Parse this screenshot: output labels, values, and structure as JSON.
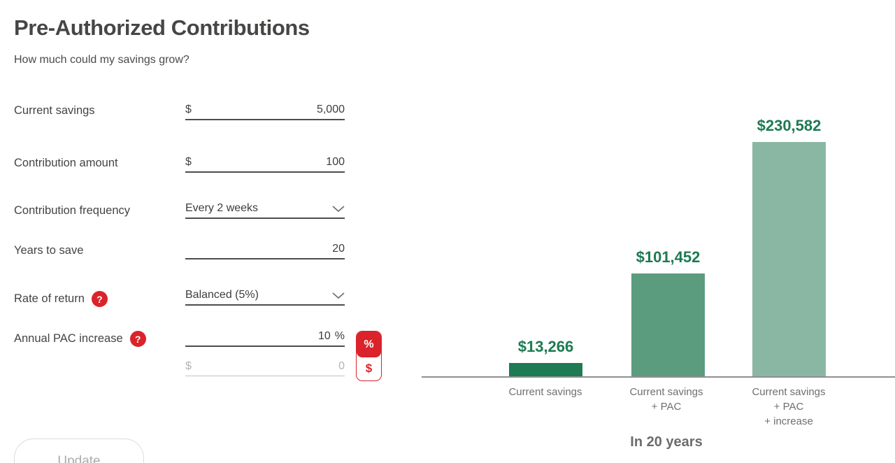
{
  "header": {
    "title": "Pre-Authorized Contributions",
    "subtitle": "How much could my savings grow?"
  },
  "form": {
    "current_savings": {
      "label": "Current savings",
      "prefix": "$",
      "value": "5,000"
    },
    "contribution_amount": {
      "label": "Contribution amount",
      "prefix": "$",
      "value": "100"
    },
    "contribution_frequency": {
      "label": "Contribution frequency",
      "value": "Every 2 weeks"
    },
    "years_to_save": {
      "label": "Years to save",
      "value": "20"
    },
    "rate_of_return": {
      "label": "Rate of return",
      "help_icon": "?",
      "value": "Balanced (5%)"
    },
    "annual_pac_increase": {
      "label": "Annual PAC increase",
      "help_icon": "?",
      "value": "10",
      "suffix": "%"
    },
    "annual_pac_dollar": {
      "prefix": "$",
      "value": "0",
      "state": "disabled"
    },
    "pac_toggle": {
      "percent_label": "%",
      "dollar_label": "$",
      "active": "percent"
    },
    "update_button_label": "Update"
  },
  "chart_data": {
    "type": "bar",
    "title": "In 20 years",
    "categories": [
      "Current savings",
      "Current savings + PAC",
      "Current savings + PAC + increase"
    ],
    "categories_lines": [
      [
        "Current savings"
      ],
      [
        "Current savings",
        "+ PAC"
      ],
      [
        "Current savings",
        "+ PAC",
        "+ increase"
      ]
    ],
    "values": [
      13266,
      101452,
      230582
    ],
    "value_labels": [
      "$13,266",
      "$101,452",
      "$230,582"
    ],
    "bar_colors": [
      "#1e7b54",
      "#5b9c7f",
      "#8ab7a3"
    ],
    "value_label_color": "#1d7a52",
    "xlabel": "In 20 years",
    "ylabel": "",
    "ylim": [
      0,
      240000
    ],
    "grid": false,
    "y_axis_shown": false,
    "baseline_color": "#8f8f8f"
  },
  "colors": {
    "accent_red": "#da232a",
    "dark_green": "#1e7b54",
    "medium_green": "#5b9c7f",
    "light_green": "#8ab7a3",
    "text_dark": "#454443",
    "text_gray": "#6f6f6f",
    "disabled_gray": "#b4b4b4"
  }
}
